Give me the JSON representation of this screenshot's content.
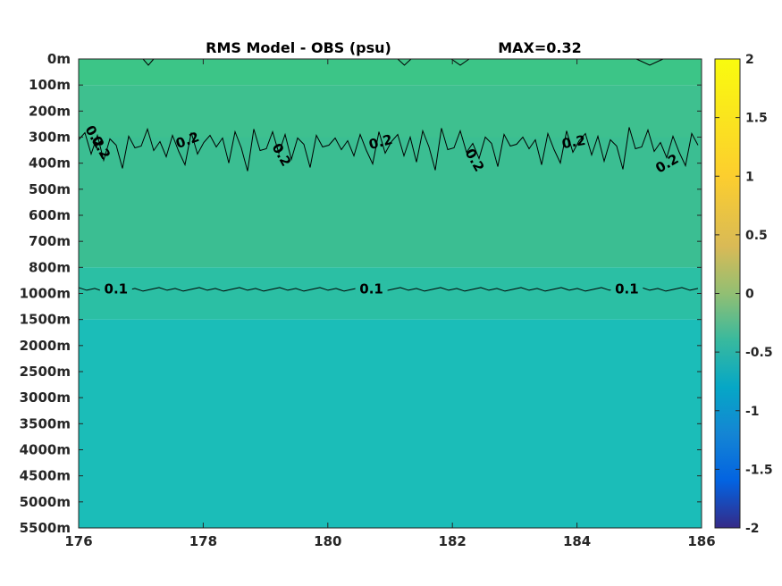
{
  "chart_data": {
    "type": "heatmap",
    "title_left": "RMS Model - OBS (psu)",
    "title_right": "MAX=0.32",
    "x_ticks": [
      176,
      178,
      180,
      182,
      184,
      186
    ],
    "xlim": [
      176,
      186
    ],
    "y_ticks": [
      "0m",
      "100m",
      "200m",
      "300m",
      "400m",
      "500m",
      "600m",
      "700m",
      "800m",
      "1000m",
      "1500m",
      "2000m",
      "2500m",
      "3000m",
      "3500m",
      "4000m",
      "4500m",
      "5000m",
      "5500m"
    ],
    "colorbar": {
      "range": [
        -2,
        2
      ],
      "ticks": [
        "2",
        "1.5",
        "1",
        "0.5",
        "0",
        "-0.5",
        "-1",
        "-1.5",
        "-2"
      ],
      "colormap": "parula"
    },
    "field_bands": [
      {
        "depth_from": "0m",
        "depth_to": "100m",
        "value": 0.26
      },
      {
        "depth_from": "100m",
        "depth_to": "300m",
        "value": 0.24
      },
      {
        "depth_from": "300m",
        "depth_to": "800m",
        "value": 0.21
      },
      {
        "depth_from": "800m",
        "depth_to": "1500m",
        "value": 0.12
      },
      {
        "depth_from": "1500m",
        "depth_to": "5500m",
        "value": 0.02
      }
    ],
    "contours": [
      {
        "level": 0.2,
        "label": "0.2",
        "label_positions": [
          176.25,
          176.35,
          177.75,
          179.25,
          180.85,
          182.35,
          183.95,
          185.45
        ]
      },
      {
        "level": 0.1,
        "label": "0.1",
        "label_positions": [
          176.6,
          180.7,
          184.8
        ]
      }
    ],
    "colors": {
      "band_top": "#3cc587",
      "band_mid": "#3ec08f",
      "band_lower": "#3bbe92",
      "band_transition": "#2bbfa4",
      "band_deep": "#1bbdb8",
      "contour": "#000000"
    }
  }
}
